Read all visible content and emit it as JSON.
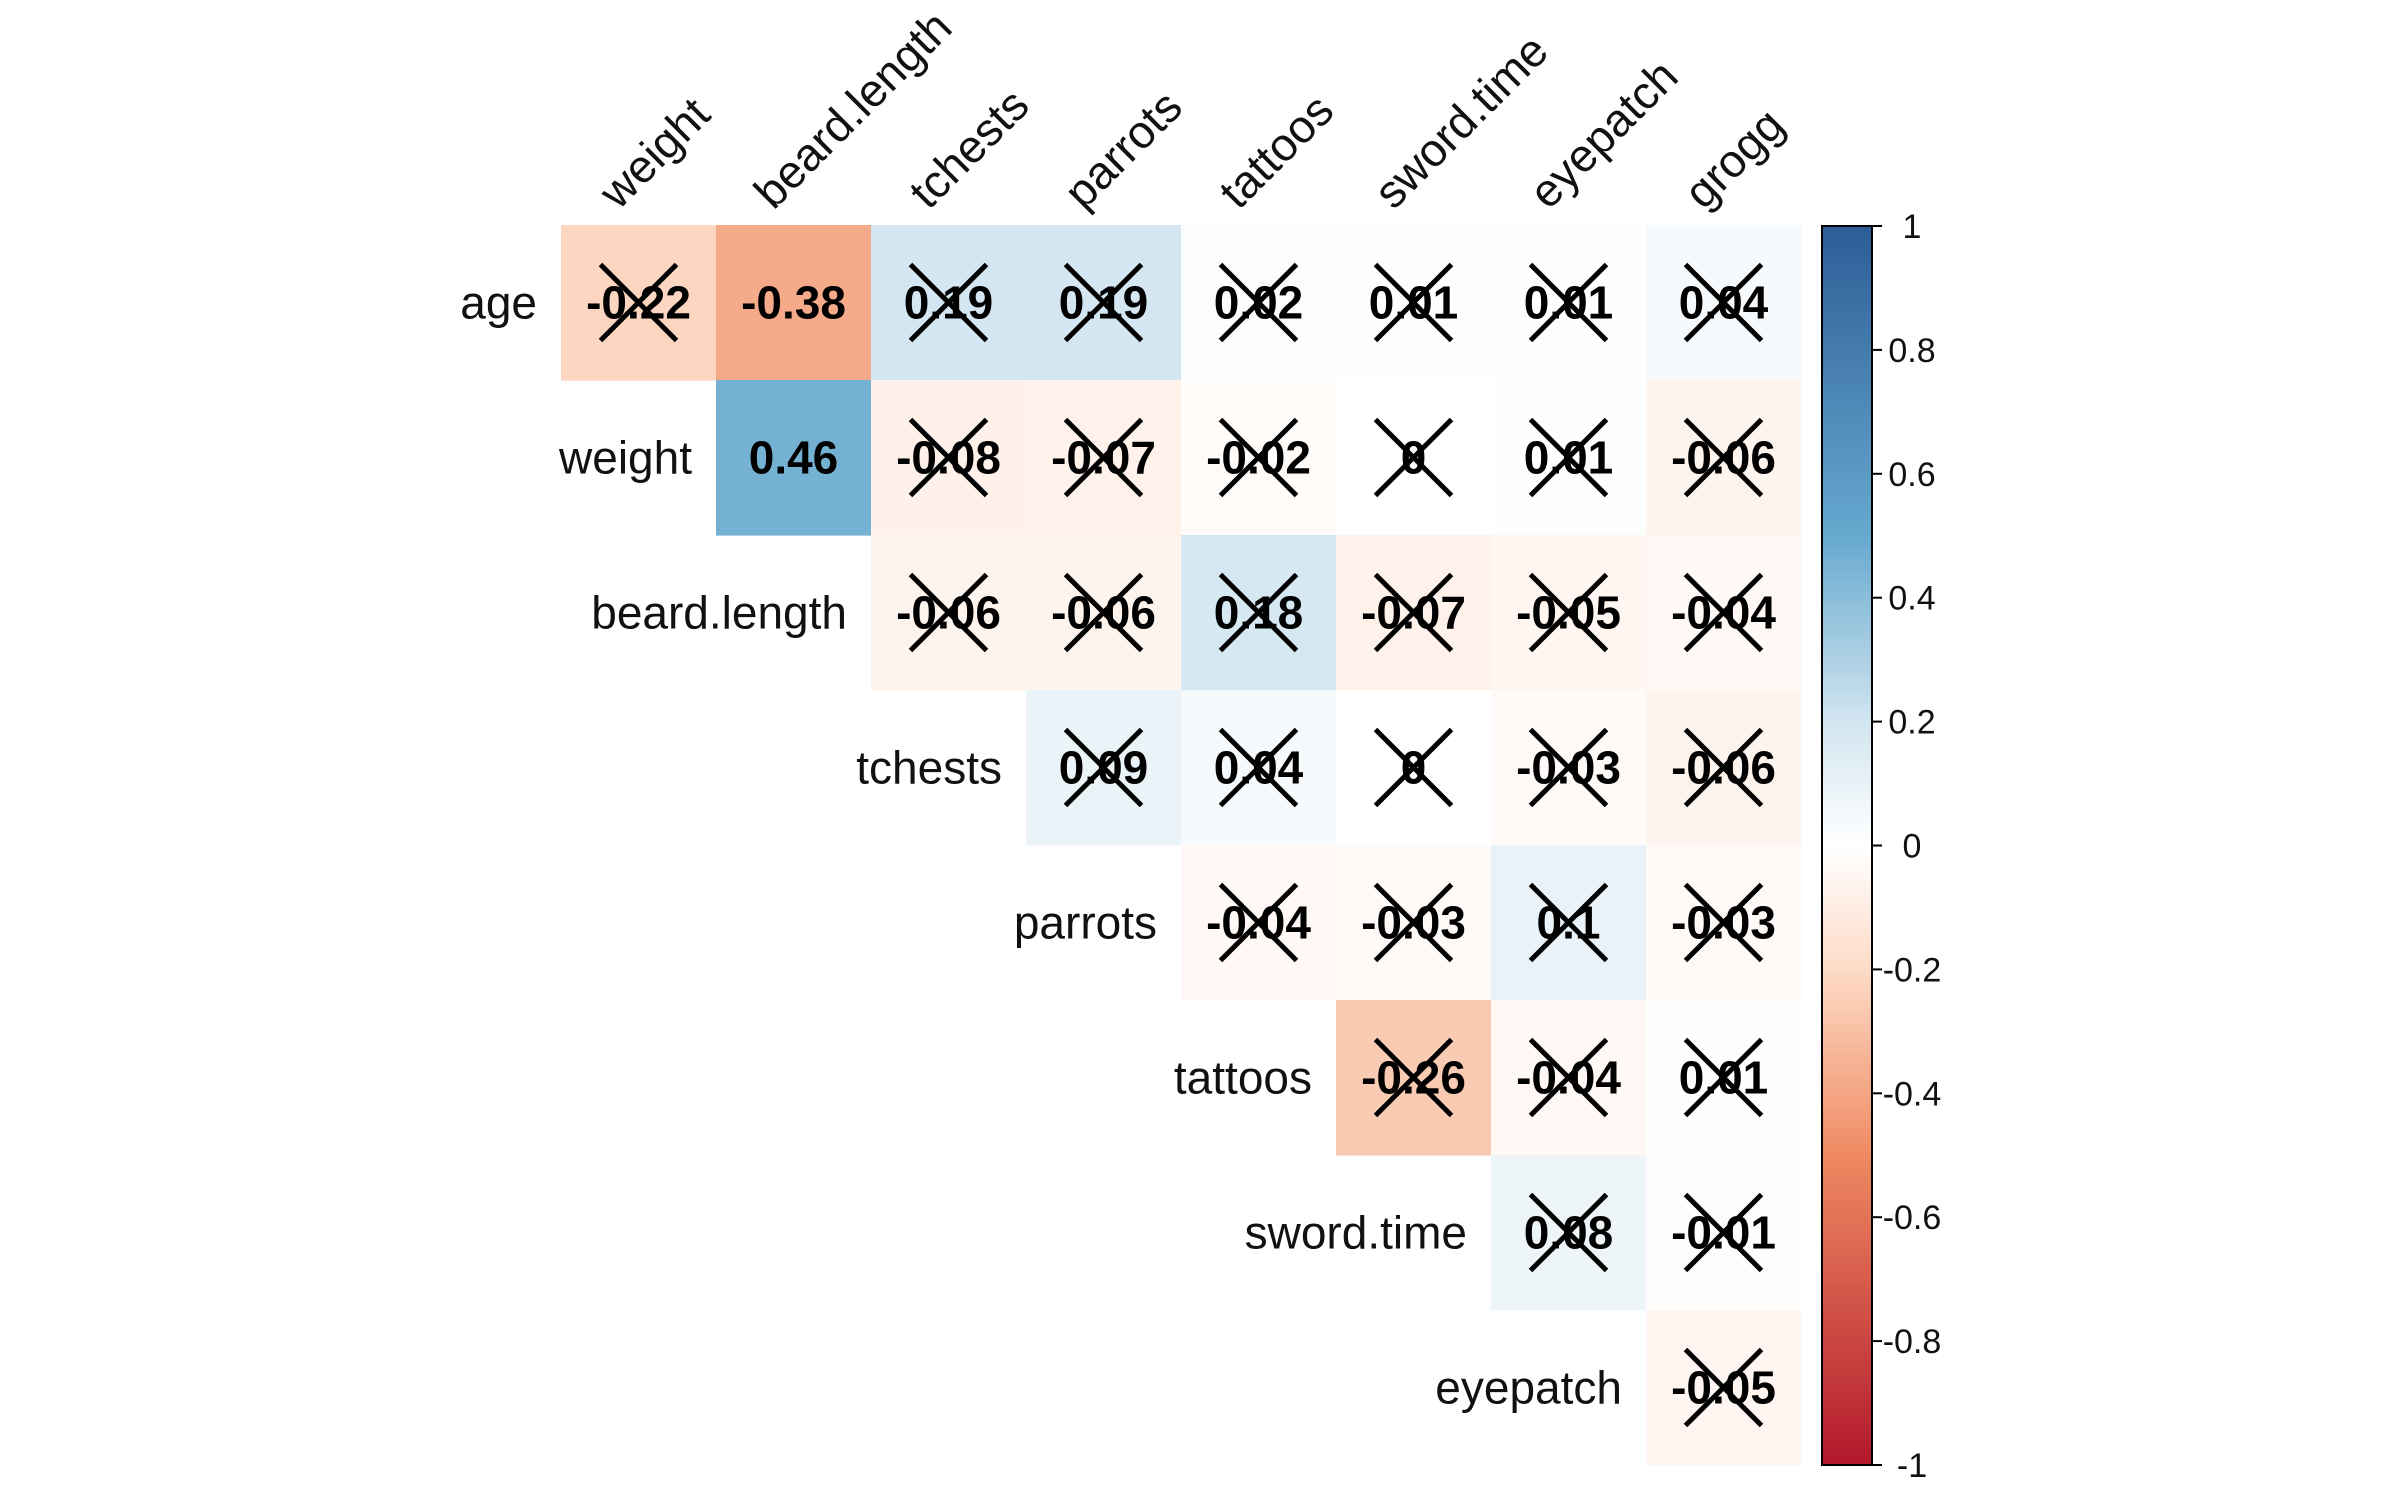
{
  "chart_data": {
    "type": "heatmap",
    "title": "",
    "xlabel": "",
    "ylabel": "",
    "layout": "upper-triangle",
    "row_labels": [
      "age",
      "weight",
      "beard.length",
      "tchests",
      "parrots",
      "tattoos",
      "sword.time",
      "eyepatch"
    ],
    "col_labels": [
      "weight",
      "beard.length",
      "tchests",
      "parrots",
      "tattoos",
      "sword.time",
      "eyepatch",
      "grogg"
    ],
    "rows": [
      {
        "name": "age",
        "values": [
          -0.22,
          -0.38,
          0.19,
          0.19,
          0.02,
          0.01,
          0.01,
          0.04
        ],
        "crossed": [
          true,
          false,
          true,
          true,
          true,
          true,
          true,
          true
        ]
      },
      {
        "name": "weight",
        "values": [
          null,
          0.46,
          -0.08,
          -0.07,
          -0.02,
          0,
          0.01,
          -0.06
        ],
        "crossed": [
          false,
          false,
          true,
          true,
          true,
          true,
          true,
          true
        ]
      },
      {
        "name": "beard.length",
        "values": [
          null,
          null,
          -0.06,
          -0.06,
          0.18,
          -0.07,
          -0.05,
          -0.04
        ],
        "crossed": [
          false,
          false,
          true,
          true,
          true,
          true,
          true,
          true
        ]
      },
      {
        "name": "tchests",
        "values": [
          null,
          null,
          null,
          0.09,
          0.04,
          0,
          -0.03,
          -0.06
        ],
        "crossed": [
          false,
          false,
          false,
          true,
          true,
          true,
          true,
          true
        ]
      },
      {
        "name": "parrots",
        "values": [
          null,
          null,
          null,
          null,
          -0.04,
          -0.03,
          0.1,
          -0.03
        ],
        "crossed": [
          false,
          false,
          false,
          false,
          true,
          true,
          true,
          true
        ]
      },
      {
        "name": "tattoos",
        "values": [
          null,
          null,
          null,
          null,
          null,
          -0.26,
          -0.04,
          0.01
        ],
        "crossed": [
          false,
          false,
          false,
          false,
          false,
          true,
          true,
          true
        ]
      },
      {
        "name": "sword.time",
        "values": [
          null,
          null,
          null,
          null,
          null,
          null,
          0.08,
          -0.01
        ],
        "crossed": [
          false,
          false,
          false,
          false,
          false,
          false,
          true,
          true
        ]
      },
      {
        "name": "eyepatch",
        "values": [
          null,
          null,
          null,
          null,
          null,
          null,
          null,
          -0.05
        ],
        "crossed": [
          false,
          false,
          false,
          false,
          false,
          false,
          false,
          true
        ]
      }
    ],
    "color_scale": {
      "range": [
        -1,
        1
      ],
      "ticks": [
        1,
        0.8,
        0.6,
        0.4,
        0.2,
        0,
        -0.2,
        -0.4,
        -0.6,
        -0.8,
        -1
      ],
      "tick_labels": [
        "1",
        "0.8",
        "0.6",
        "0.4",
        "0.2",
        "0",
        "-0.2",
        "-0.4",
        "-0.6",
        "-0.8",
        "-1"
      ],
      "low_color": "#b2182b",
      "mid_low_color": "#ef8a62",
      "mid_low2_color": "#fddbc7",
      "mid_color": "#ffffff",
      "mid_high2_color": "#d1e5f0",
      "mid_high_color": "#67a9cf",
      "high_color": "#2c5d96"
    },
    "legend": "right",
    "grid": false
  }
}
